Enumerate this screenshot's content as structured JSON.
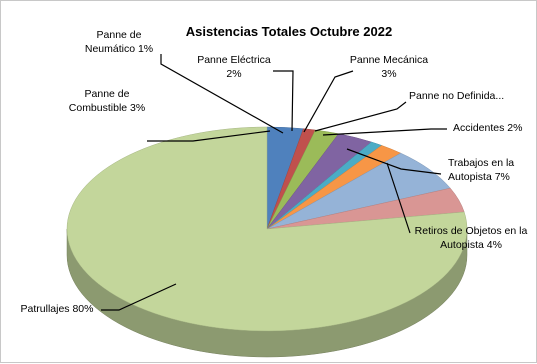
{
  "chart_data": {
    "type": "pie",
    "title": "Asistencias  Totales Octubre 2022",
    "slices": [
      {
        "name": "Panne de Combustible",
        "value": 3,
        "color": "#4f81bd",
        "label_lines": [
          "Panne de",
          "Combustible 3%"
        ]
      },
      {
        "name": "Panne de Neumático",
        "value": 1,
        "color": "#c0504d",
        "label_lines": [
          "Panne de",
          "Neumático 1%"
        ]
      },
      {
        "name": "Panne Eléctrica",
        "value": 2,
        "color": "#9bbb59",
        "label_lines": [
          "Panne Eléctrica",
          "2%"
        ]
      },
      {
        "name": "Panne Mecánica",
        "value": 3,
        "color": "#8064a2",
        "label_lines": [
          "Panne Mecánica",
          "3%"
        ]
      },
      {
        "name": "Panne no Definida",
        "value": 1,
        "color": "#4bacc6",
        "label_lines": [
          "Panne no Definida..."
        ]
      },
      {
        "name": "Accidentes",
        "value": 2,
        "color": "#f79646",
        "label_lines": [
          "Accidentes 2%"
        ]
      },
      {
        "name": "Trabajos en la Autopista",
        "value": 7,
        "color": "#95b3d7",
        "label_lines": [
          "Trabajos en la",
          "Autopista 7%"
        ]
      },
      {
        "name": "Retiros de Objetos en la Autopista",
        "value": 4,
        "color": "#d99694",
        "label_lines": [
          "Retiros de Objetos en la",
          "Autopista 4%"
        ]
      },
      {
        "name": "Patrullajes",
        "value": 80,
        "color": "#c3d69b",
        "label_lines": [
          "Patrullajes 80%"
        ]
      }
    ],
    "legend": "none"
  }
}
